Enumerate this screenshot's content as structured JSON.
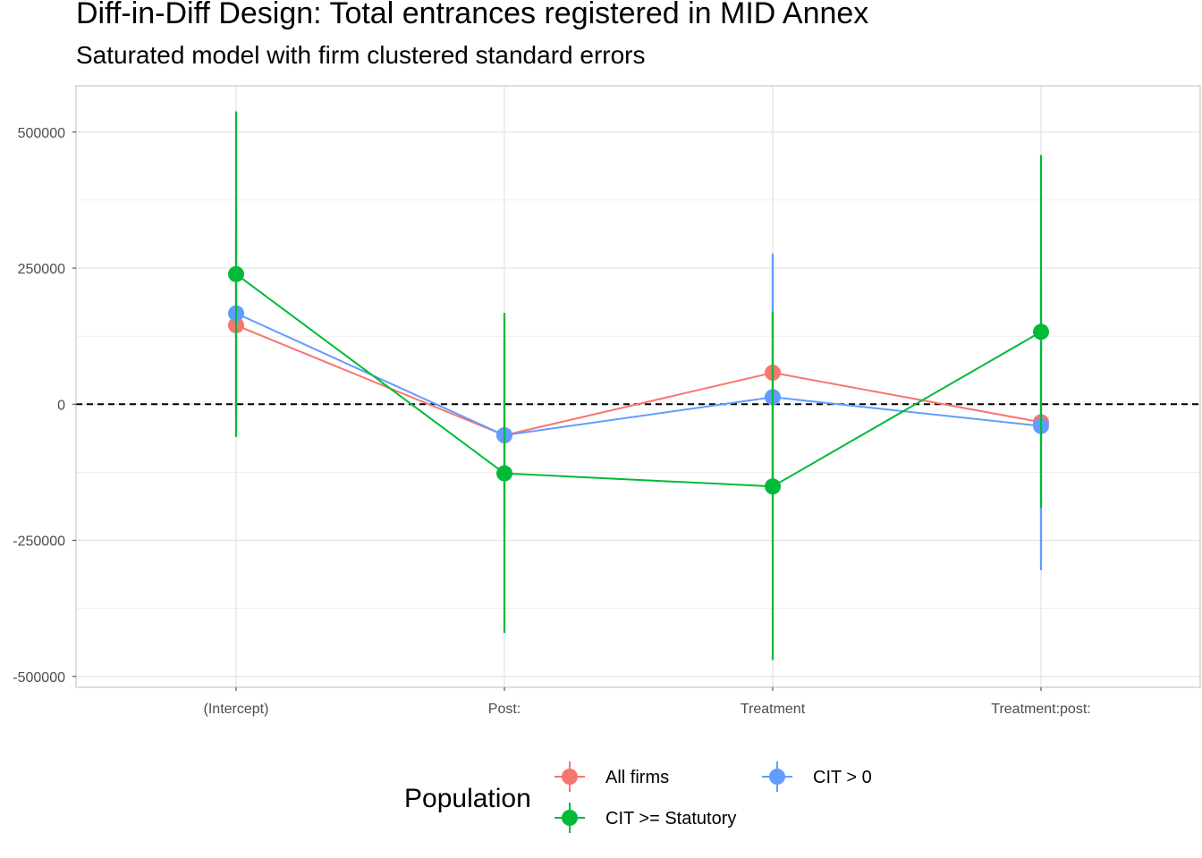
{
  "chart_data": {
    "type": "line",
    "title": "Diff-in-Diff Design: Total entrances registered in MID Annex",
    "subtitle": "Saturated model with firm clustered standard errors",
    "xlabel": "",
    "ylabel": "",
    "categories": [
      "(Intercept)",
      "Post:",
      "Treatment",
      "Treatment:post:"
    ],
    "ylim": [
      -520000,
      585000
    ],
    "yticks": [
      -500000,
      -250000,
      0,
      250000,
      500000
    ],
    "ytick_labels": [
      "-500000",
      "-250000",
      "0",
      "250000",
      "500000"
    ],
    "reference_line": {
      "y": 0,
      "style": "dashed"
    },
    "grid": true,
    "legend": {
      "title": "Population",
      "position": "bottom"
    },
    "series": [
      {
        "name": "All firms",
        "color": "#F8766D",
        "values": [
          145000,
          -57000,
          58000,
          -33000
        ],
        "lower": [
          -25000,
          -230000,
          -160000,
          -290000
        ],
        "upper": [
          315000,
          115000,
          275000,
          225000
        ]
      },
      {
        "name": "CIT > 0",
        "color": "#619CFF",
        "values": [
          167000,
          -57000,
          13000,
          -40000
        ],
        "lower": [
          -20000,
          -240000,
          -250000,
          -305000
        ],
        "upper": [
          360000,
          120000,
          277000,
          225000
        ]
      },
      {
        "name": "CIT >= Statutory",
        "color": "#00BA38",
        "values": [
          239000,
          -127000,
          -151000,
          133000
        ],
        "lower": [
          -60000,
          -420000,
          -470000,
          -190000
        ],
        "upper": [
          538000,
          168000,
          170000,
          458000
        ]
      }
    ]
  }
}
